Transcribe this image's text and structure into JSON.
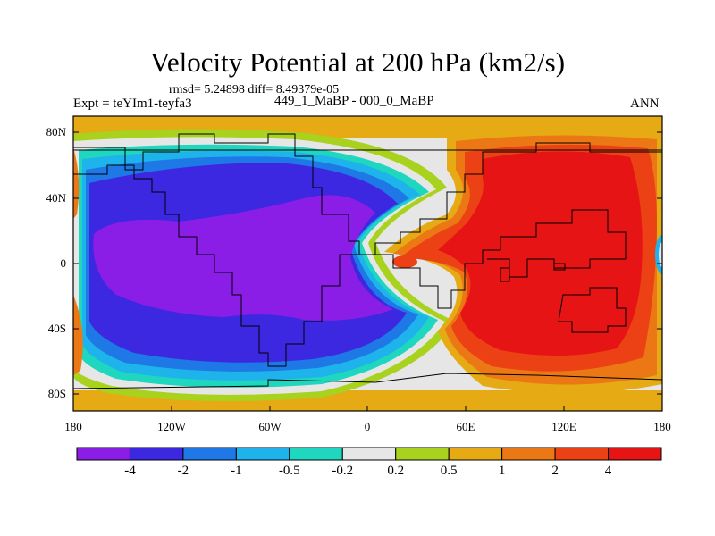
{
  "title": "Velocity Potential at 200 hPa (km2/s)",
  "stats_text": "rmsd= 5.24898 diff= 8.49379e-05",
  "experiment_label": "Expt = teYIm1-teyfa3",
  "comparison_label": "449_1_MaBP - 000_0_MaBP",
  "season": "ANN",
  "lat_labels": [
    "80N",
    "40N",
    "0",
    "40S",
    "80S"
  ],
  "lon_labels": [
    "180",
    "120W",
    "60W",
    "0",
    "60E",
    "120E",
    "180"
  ],
  "colorbar": {
    "labels": [
      "-4",
      "-2",
      "-1",
      "-0.5",
      "-0.2",
      "0.2",
      "0.5",
      "1",
      "2",
      "4"
    ],
    "colors": [
      "#8b1ee6",
      "#3c28e0",
      "#1e78e6",
      "#1eb4eb",
      "#1ed7be",
      "#e6e6e6",
      "#a8d21e",
      "#e6aa14",
      "#eb7814",
      "#eb4114",
      "#e61414"
    ]
  }
}
